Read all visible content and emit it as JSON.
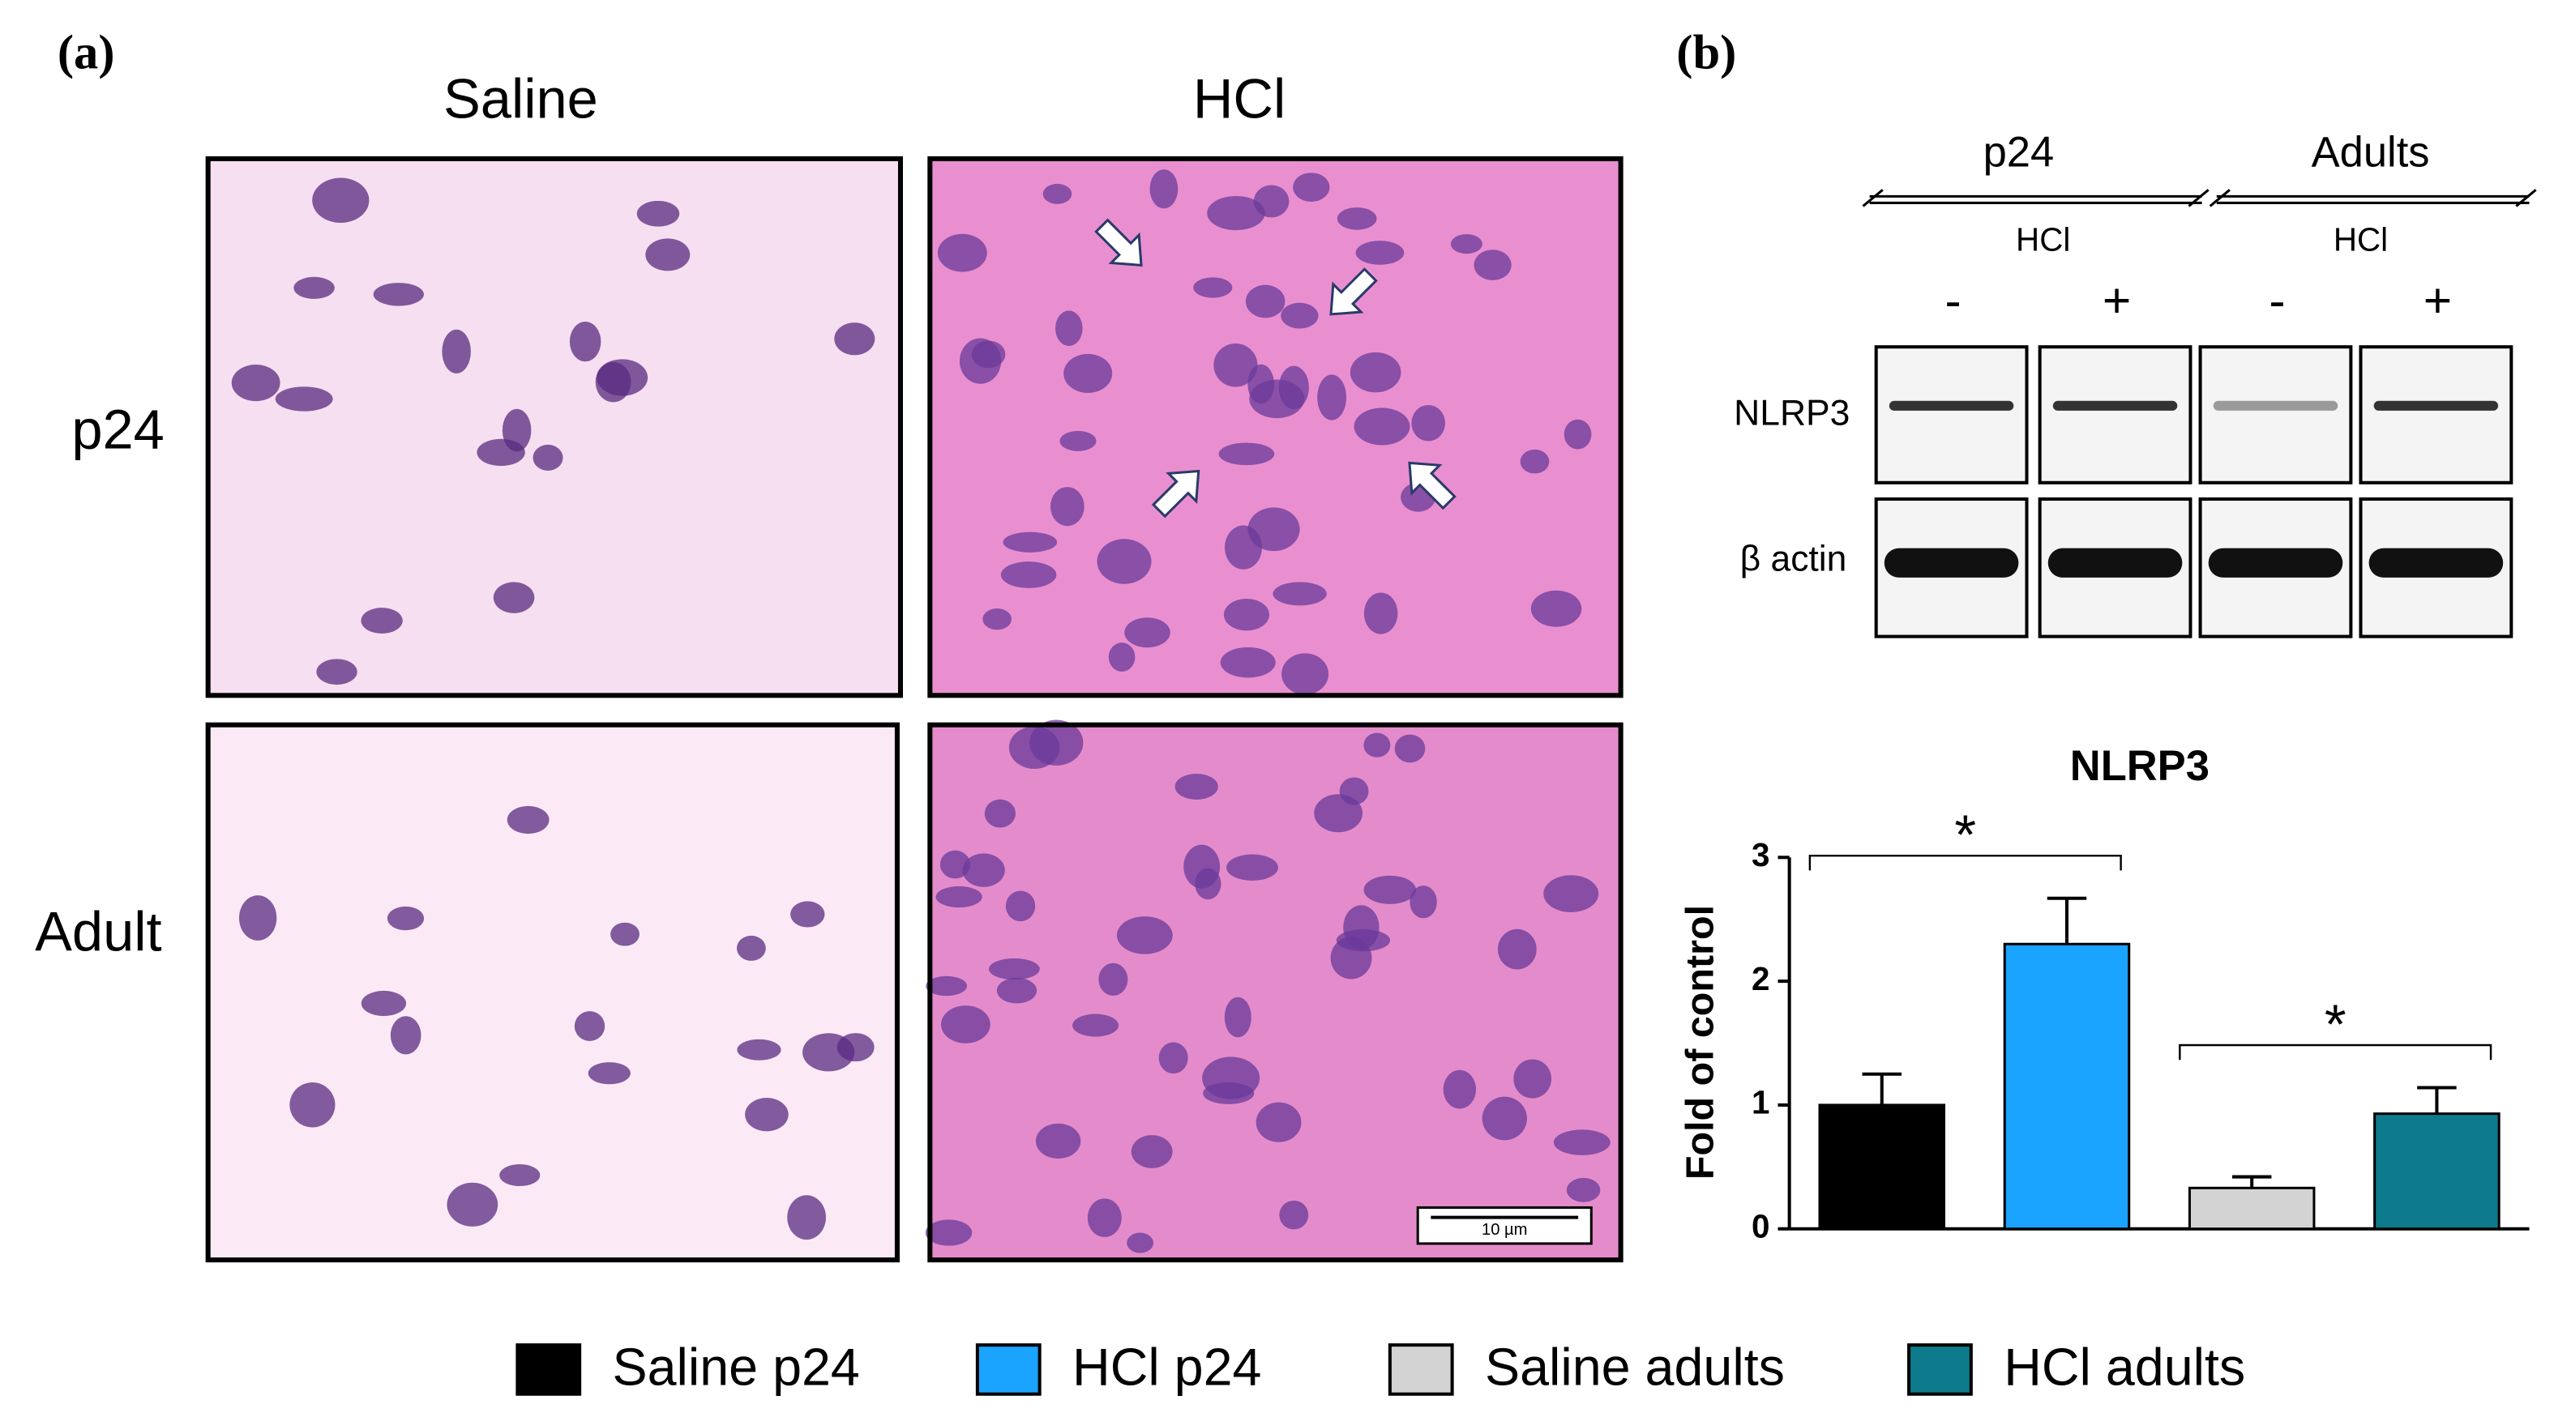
{
  "panel_a": {
    "label": "(a)",
    "columns": [
      "Saline",
      "HCl"
    ],
    "rows": [
      "p24",
      "Adult"
    ],
    "scale_bar": "10 µm"
  },
  "panel_b": {
    "label": "(b)",
    "blot": {
      "groups": [
        "p24",
        "Adults"
      ],
      "treatment": [
        "HCl",
        "HCl"
      ],
      "lanes": [
        "-",
        "+",
        "-",
        "+"
      ],
      "bands": [
        "NLRP3",
        "β actin"
      ]
    }
  },
  "chart_data": {
    "type": "bar",
    "title": "NLRP3",
    "y_label": "Fold of control",
    "categories": [
      "Saline p24",
      "HCl p24",
      "Saline adults",
      "HCl adults"
    ],
    "values": [
      1.0,
      2.3,
      0.33,
      0.93
    ],
    "errors": [
      0.25,
      0.37,
      0.09,
      0.21
    ],
    "colors": [
      "#000000",
      "#1aa3ff",
      "#d3d3d3",
      "#0e7b8c"
    ],
    "ylim": [
      0,
      3
    ],
    "yticks": [
      0,
      1,
      2,
      3
    ],
    "significance": [
      "*",
      "*"
    ]
  }
}
